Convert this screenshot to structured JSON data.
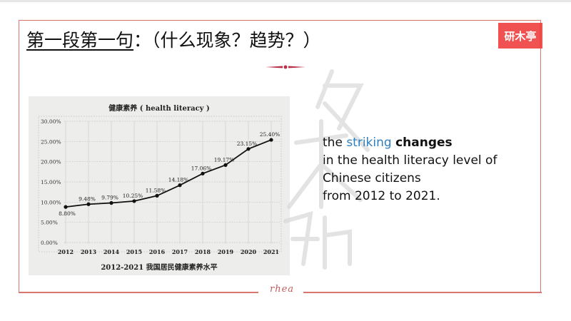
{
  "slide": {
    "title_underlined": "第一段第一句",
    "title_rest": "：（什么现象？趋势？）",
    "logo_text": "研木亭",
    "signature": "rhea",
    "colors": {
      "frame": "#d9776f",
      "logo_bg": "#f04848",
      "accent_blue": "#2e7fc0",
      "ornament": "#b8324a"
    }
  },
  "side_text": {
    "line1_prefix": "the ",
    "line1_highlight": "striking",
    "line1_space": " ",
    "line1_bold": "changes",
    "line2": "in the health literacy level of",
    "line3": "Chinese citizens",
    "line4": "from 2012 to 2021."
  },
  "chart_data": {
    "type": "line",
    "title": "健康素养 ( health literacy )",
    "caption": "2012-2021 我国居民健康素养水平",
    "xlabel": "",
    "ylabel": "",
    "categories": [
      "2012",
      "2013",
      "2014",
      "2015",
      "2016",
      "2017",
      "2018",
      "2019",
      "2020",
      "2021"
    ],
    "series": [
      {
        "name": "health literacy",
        "values": [
          8.8,
          9.48,
          9.79,
          10.25,
          11.58,
          14.18,
          17.06,
          19.17,
          23.15,
          25.4
        ],
        "labels": [
          "8.80%",
          "9.48%",
          "9.79%",
          "10.25%",
          "11.58%",
          "14.18%",
          "17.06%",
          "19.17%",
          "23.15%",
          "25.40%"
        ]
      }
    ],
    "yticks": [
      "0.00%",
      "5.00%",
      "10.00%",
      "15.00%",
      "20.00%",
      "25.00%",
      "30.00%"
    ],
    "ylim": [
      0,
      30
    ],
    "grid": true,
    "legend": "none"
  }
}
